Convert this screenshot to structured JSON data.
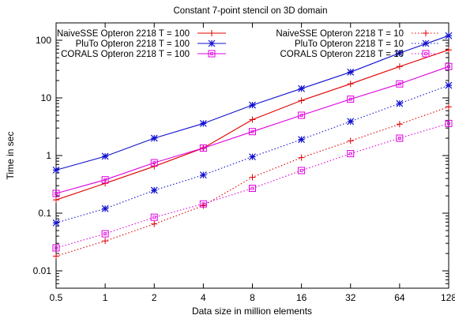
{
  "chart_data": {
    "type": "line",
    "title": "Constant 7-point stencil on 3D domain",
    "xlabel": "Data size in million elements",
    "ylabel": "Time in sec",
    "x": [
      0.5,
      1,
      2,
      4,
      8,
      16,
      32,
      64,
      128
    ],
    "x_tick_labels": [
      "0.5",
      "1",
      "2",
      "4",
      "8",
      "16",
      "32",
      "64",
      "128"
    ],
    "x_scale": "log2",
    "y_scale": "log10",
    "ylim": [
      0.005,
      200
    ],
    "y_ticks": [
      0.01,
      0.1,
      1,
      10,
      100
    ],
    "y_tick_labels": [
      "0.01",
      "0.1",
      "1",
      "10",
      "100"
    ],
    "grid": false,
    "legend_position": "top",
    "series": [
      {
        "name": "NaiveSSE Opteron 2218 T = 100",
        "color": "#e00000",
        "dash": "solid",
        "marker": "plus",
        "values": [
          0.17,
          0.33,
          0.65,
          1.35,
          4.2,
          9.0,
          17.5,
          35,
          68
        ]
      },
      {
        "name": "PluTo Opteron 2218 T = 100",
        "color": "#1010d0",
        "dash": "solid",
        "marker": "star",
        "values": [
          0.56,
          0.97,
          2.0,
          3.6,
          7.5,
          14.5,
          28,
          60,
          120
        ]
      },
      {
        "name": "CORALS Opteron 2218 T = 100",
        "color": "#e000e0",
        "dash": "solid",
        "marker": "square",
        "values": [
          0.22,
          0.38,
          0.75,
          1.35,
          2.6,
          5.0,
          9.5,
          17.5,
          35
        ]
      },
      {
        "name": "NaiveSSE Opteron 2218 T = 10",
        "color": "#e00000",
        "dash": "dotted",
        "marker": "plus",
        "values": [
          0.018,
          0.033,
          0.065,
          0.135,
          0.42,
          0.92,
          1.8,
          3.5,
          7.0
        ]
      },
      {
        "name": "PluTo Opteron 2218 T = 10",
        "color": "#1010d0",
        "dash": "dotted",
        "marker": "star",
        "values": [
          0.068,
          0.12,
          0.25,
          0.46,
          0.95,
          1.9,
          3.9,
          8.0,
          16.5
        ]
      },
      {
        "name": "CORALS Opteron 2218 T = 10",
        "color": "#e000e0",
        "dash": "dotted",
        "marker": "square",
        "values": [
          0.025,
          0.044,
          0.085,
          0.145,
          0.27,
          0.55,
          1.08,
          2.0,
          3.6
        ]
      }
    ]
  }
}
